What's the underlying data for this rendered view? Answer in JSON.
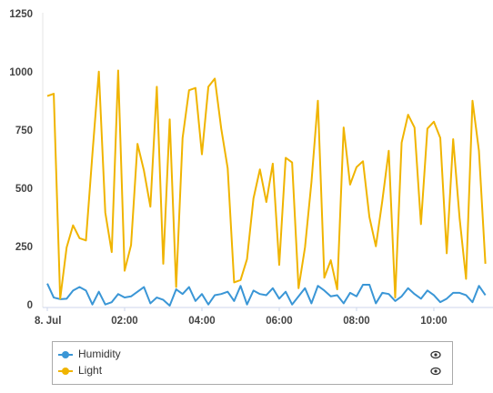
{
  "chart_data": {
    "type": "line",
    "x": [
      0,
      10,
      20,
      30,
      40,
      50,
      60,
      70,
      80,
      90,
      100,
      110,
      120,
      130,
      140,
      150,
      160,
      170,
      180,
      190,
      200,
      210,
      220,
      230,
      240,
      250,
      260,
      270,
      280,
      290,
      300,
      310,
      320,
      330,
      340,
      350,
      360,
      370,
      380,
      390,
      400,
      410,
      420,
      430,
      440,
      450,
      460,
      470,
      480,
      490,
      500,
      510,
      520,
      530,
      540,
      550,
      560,
      570,
      580,
      590,
      600,
      610,
      620,
      630,
      640,
      650,
      660,
      670,
      680
    ],
    "series": [
      {
        "name": "Humidity",
        "color": "#3a96d6",
        "values": [
          95,
          35,
          28,
          30,
          65,
          80,
          65,
          5,
          60,
          5,
          15,
          50,
          35,
          40,
          60,
          80,
          10,
          35,
          25,
          0,
          70,
          50,
          80,
          20,
          50,
          5,
          45,
          50,
          60,
          20,
          85,
          5,
          65,
          50,
          45,
          75,
          30,
          60,
          5,
          40,
          75,
          10,
          85,
          65,
          40,
          45,
          10,
          55,
          40,
          90,
          90,
          10,
          55,
          50,
          20,
          40,
          75,
          50,
          30,
          65,
          45,
          15,
          30,
          55,
          55,
          45,
          15,
          85,
          45
        ]
      },
      {
        "name": "Light",
        "color": "#f0b400",
        "values": [
          900,
          910,
          30,
          250,
          345,
          290,
          280,
          650,
          1005,
          400,
          230,
          1010,
          150,
          260,
          695,
          580,
          425,
          940,
          180,
          800,
          80,
          720,
          925,
          935,
          650,
          940,
          975,
          760,
          590,
          100,
          110,
          200,
          460,
          585,
          445,
          610,
          175,
          635,
          615,
          75,
          250,
          530,
          880,
          120,
          195,
          70,
          765,
          520,
          595,
          620,
          380,
          255,
          450,
          665,
          35,
          700,
          820,
          765,
          350,
          760,
          790,
          720,
          225,
          715,
          375,
          115,
          880,
          665,
          180
        ]
      }
    ],
    "xlim": [
      0,
      689
    ],
    "xticks": [
      {
        "value": 0,
        "label": "8. Jul"
      },
      {
        "value": 120,
        "label": "02:00"
      },
      {
        "value": 240,
        "label": "04:00"
      },
      {
        "value": 360,
        "label": "06:00"
      },
      {
        "value": 480,
        "label": "08:00"
      },
      {
        "value": 600,
        "label": "10:00"
      }
    ],
    "ylim": [
      0,
      1250
    ],
    "yticks": [
      0,
      250,
      500,
      750,
      1000,
      1250
    ]
  }
}
